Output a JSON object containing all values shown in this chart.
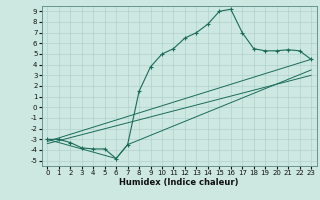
{
  "title": "",
  "xlabel": "Humidex (Indice chaleur)",
  "ylabel": "",
  "bg_color": "#cce8e0",
  "grid_color": "#aacccc",
  "line_color": "#1a6b5a",
  "xlim": [
    -0.5,
    23.5
  ],
  "ylim": [
    -5.5,
    9.5
  ],
  "xticks": [
    0,
    1,
    2,
    3,
    4,
    5,
    6,
    7,
    8,
    9,
    10,
    11,
    12,
    13,
    14,
    15,
    16,
    17,
    18,
    19,
    20,
    21,
    22,
    23
  ],
  "yticks": [
    -5,
    -4,
    -3,
    -2,
    -1,
    0,
    1,
    2,
    3,
    4,
    5,
    6,
    7,
    8,
    9
  ],
  "line_main_x": [
    0,
    1,
    2,
    3,
    4,
    5,
    6,
    7,
    8,
    9,
    10,
    11,
    12,
    13,
    14,
    15,
    16,
    17,
    18,
    19,
    20,
    21,
    22,
    23
  ],
  "line_main_y": [
    -3,
    -3,
    -3.3,
    -3.8,
    -3.9,
    -3.9,
    -4.8,
    -3.5,
    1.5,
    3.8,
    5.0,
    5.5,
    6.5,
    7.0,
    7.8,
    9.0,
    9.2,
    7.0,
    5.5,
    5.3,
    5.3,
    5.4,
    5.3,
    4.5
  ],
  "line2_x": [
    0,
    6,
    7,
    23
  ],
  "line2_y": [
    -3,
    -4.8,
    -3.5,
    3.5
  ],
  "line3_x": [
    0,
    23
  ],
  "line3_y": [
    -3.2,
    4.5
  ],
  "line4_x": [
    0,
    23
  ],
  "line4_y": [
    -3.4,
    3.0
  ],
  "xlabel_fontsize": 6,
  "tick_fontsize": 5
}
